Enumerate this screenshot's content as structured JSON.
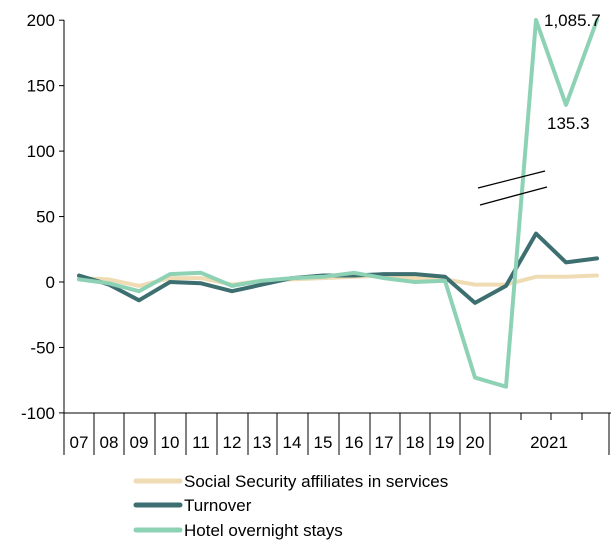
{
  "chart_data": {
    "type": "line",
    "title": "",
    "xlabel": "",
    "ylabel": "",
    "ylim": [
      -100,
      200
    ],
    "yticks": [
      200,
      150,
      100,
      50,
      0,
      -50,
      -100
    ],
    "grid": false,
    "legend_position": "bottom",
    "x": [
      "07",
      "08",
      "09",
      "10",
      "11",
      "12",
      "13",
      "14",
      "15",
      "16",
      "17",
      "18",
      "19",
      "20",
      "2021 Q1",
      "2021 Q2",
      "2021 Q3",
      "2021 Q4"
    ],
    "year_labels": [
      "07",
      "08",
      "09",
      "10",
      "11",
      "12",
      "13",
      "14",
      "15",
      "16",
      "17",
      "18",
      "19",
      "20"
    ],
    "year_2021_label": "2021",
    "axis_break": true,
    "series": [
      {
        "name": "Social Security affiliates in services",
        "color": "#efdcb4",
        "values": [
          3,
          2,
          -3,
          3,
          3,
          -2,
          1,
          2,
          3,
          4,
          5,
          3,
          2,
          -2,
          -2,
          4,
          4,
          5
        ]
      },
      {
        "name": "Turnover",
        "color": "#3d6e70",
        "values": [
          5,
          -2,
          -14,
          0,
          -1,
          -7,
          -2,
          3,
          5,
          5,
          6,
          6,
          4,
          -16,
          -3,
          37,
          15,
          18
        ]
      },
      {
        "name": "Hotel overnight stays",
        "color": "#8ed2b5",
        "values": [
          2,
          -1,
          -7,
          6,
          7,
          -3,
          1,
          3,
          4,
          7,
          3,
          0,
          1,
          -73,
          -80,
          1085.7,
          135.3,
          1085.7
        ]
      }
    ],
    "annotations": [
      "1,085.7",
      "135.3"
    ]
  }
}
